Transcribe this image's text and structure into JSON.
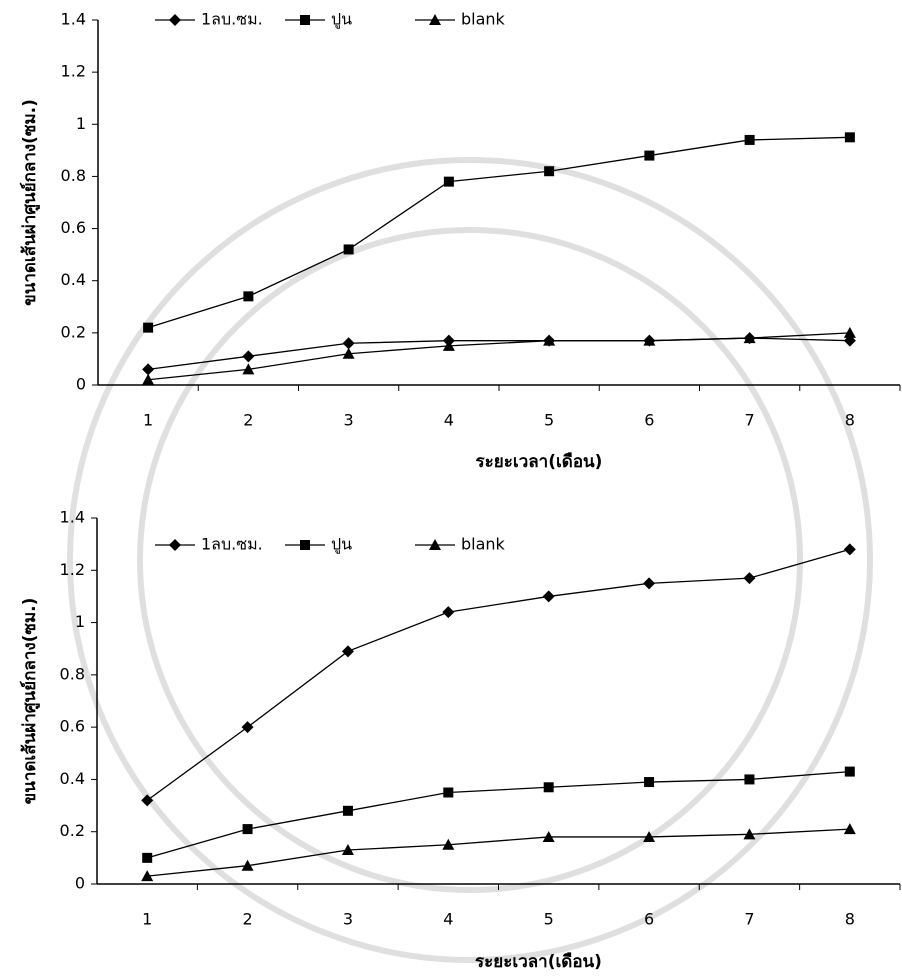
{
  "chart_data": [
    {
      "type": "line",
      "y_label": "ขนาดเส้นผ่าศูนย์กลาง(ซม.)",
      "x_label": "ระยะเวลา(เดือน)",
      "categories": [
        "1",
        "2",
        "3",
        "4",
        "5",
        "6",
        "7",
        "8"
      ],
      "ylim": [
        0,
        1.4
      ],
      "yticks": [
        0,
        0.2,
        0.4,
        0.6,
        0.8,
        1,
        1.2,
        1.4
      ],
      "series": [
        {
          "name": "1ลบ.ซม.",
          "color": "#000000",
          "marker": "diamond",
          "values": [
            0.06,
            0.11,
            0.16,
            0.17,
            0.17,
            0.17,
            0.18,
            0.17
          ]
        },
        {
          "name": "ปูน",
          "color": "#000000",
          "marker": "square",
          "values": [
            0.22,
            0.34,
            0.52,
            0.78,
            0.82,
            0.88,
            0.94,
            0.95
          ]
        },
        {
          "name": "blank",
          "color": "#000000",
          "marker": "triangle",
          "values": [
            0.02,
            0.06,
            0.12,
            0.15,
            0.17,
            0.17,
            0.18,
            0.2
          ]
        }
      ]
    },
    {
      "type": "line",
      "y_label": "ขนาดเส้นผ่าศูนย์กลาง(ซม.)",
      "x_label": "ระยะเวลา(เดือน)",
      "categories": [
        "1",
        "2",
        "3",
        "4",
        "5",
        "6",
        "7",
        "8"
      ],
      "ylim": [
        0,
        1.4
      ],
      "yticks": [
        0,
        0.2,
        0.4,
        0.6,
        0.8,
        1,
        1.2,
        1.4
      ],
      "series": [
        {
          "name": "1ลบ.ซม.",
          "color": "#000000",
          "marker": "diamond",
          "values": [
            0.32,
            0.6,
            0.89,
            1.04,
            1.1,
            1.15,
            1.17,
            1.28
          ]
        },
        {
          "name": "ปูน",
          "color": "#000000",
          "marker": "square",
          "values": [
            0.1,
            0.21,
            0.28,
            0.35,
            0.37,
            0.39,
            0.4,
            0.43
          ]
        },
        {
          "name": "blank",
          "color": "#000000",
          "marker": "triangle",
          "values": [
            0.03,
            0.07,
            0.13,
            0.15,
            0.18,
            0.18,
            0.19,
            0.21
          ]
        }
      ]
    }
  ]
}
